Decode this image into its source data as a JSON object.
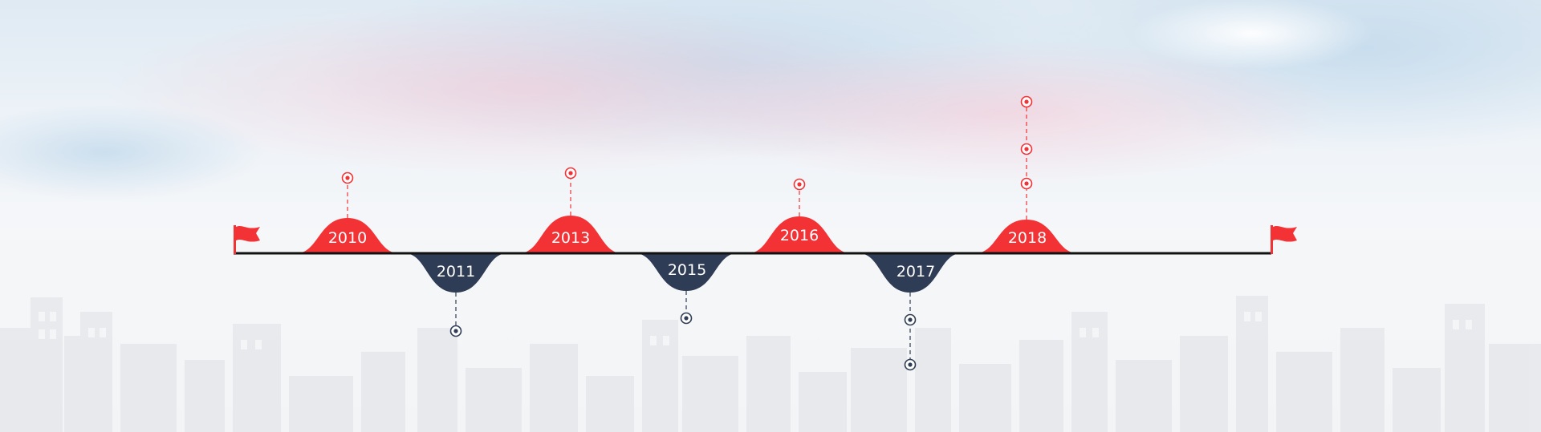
{
  "colors": {
    "accent_red": "#f33236",
    "accent_navy": "#2f3c56",
    "baseline": "#111111"
  },
  "timeline": {
    "start_flag_icon": "flag-icon",
    "end_flag_icon": "flag-icon",
    "milestones": [
      {
        "year": "2010",
        "side": "top",
        "markers": 1
      },
      {
        "year": "2011",
        "side": "bottom",
        "markers": 1
      },
      {
        "year": "2013",
        "side": "top",
        "markers": 1
      },
      {
        "year": "2015",
        "side": "bottom",
        "markers": 1
      },
      {
        "year": "2016",
        "side": "top",
        "markers": 1
      },
      {
        "year": "2017",
        "side": "bottom",
        "markers": 2
      },
      {
        "year": "2018",
        "side": "top",
        "markers": 3
      }
    ]
  }
}
